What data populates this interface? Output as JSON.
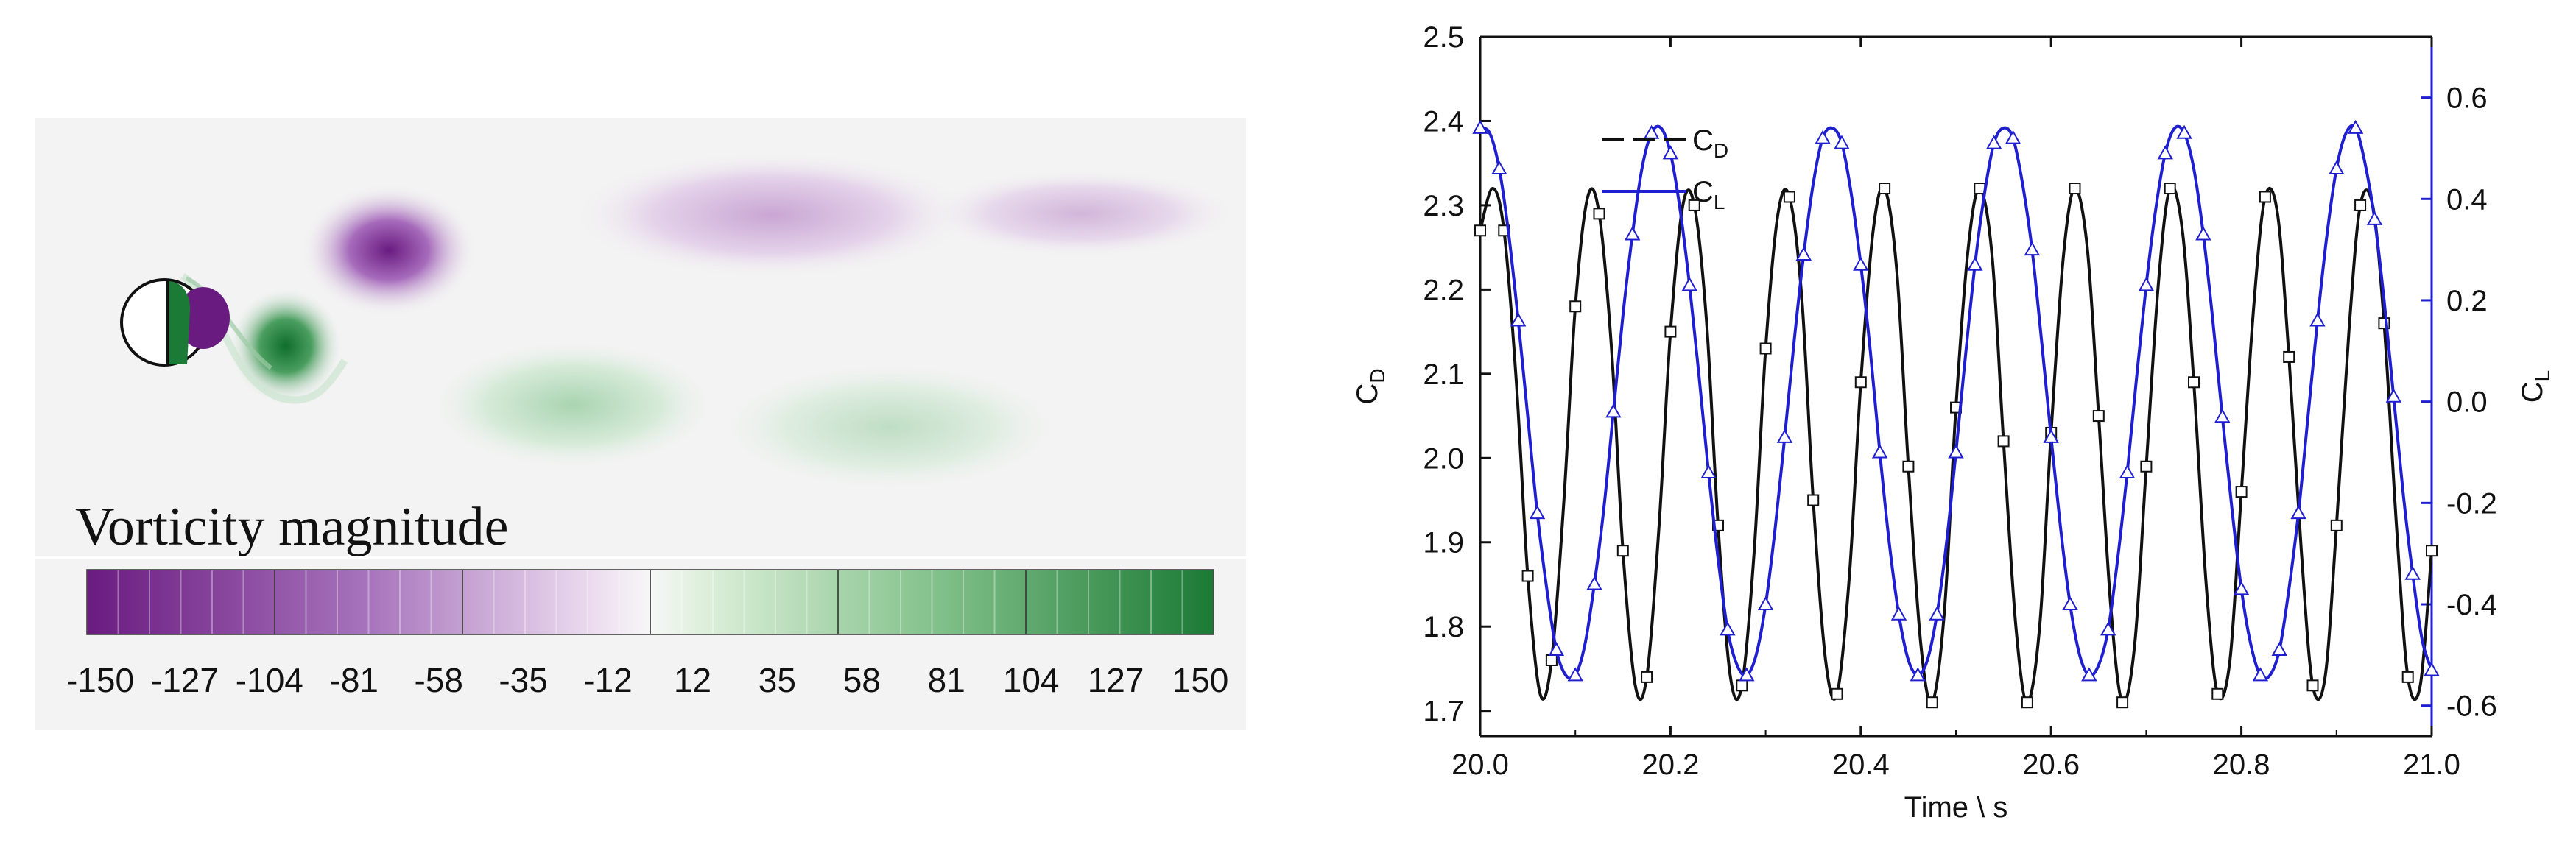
{
  "contour": {
    "title": "Vorticity magnitude",
    "colorbar_ticks": [
      "-150",
      "-127",
      "-104",
      "-81",
      "-58",
      "-35",
      "-12",
      "12",
      "35",
      "58",
      "81",
      "104",
      "127",
      "150"
    ],
    "colors": {
      "negative": "#6a1b80",
      "positive": "#1b7a35",
      "neutral": "#f7f7f7",
      "background": "#f3f3f3"
    }
  },
  "chart_data": {
    "type": "line",
    "xlabel": "Time \\ s",
    "xlim": [
      20.0,
      21.0
    ],
    "x_ticks": [
      "20.0",
      "20.2",
      "20.4",
      "20.6",
      "20.8",
      "21.0"
    ],
    "y_left": {
      "label": "C_D",
      "ylim": [
        1.67,
        2.5
      ],
      "ticks": [
        "1.7",
        "1.8",
        "1.9",
        "2.0",
        "2.1",
        "2.2",
        "2.3",
        "2.4",
        "2.5"
      ]
    },
    "y_right": {
      "label": "C_L",
      "ylim": [
        -0.66,
        0.72
      ],
      "ticks": [
        "-0.6",
        "-0.4",
        "-0.2",
        "0.0",
        "0.2",
        "0.4",
        "0.6"
      ],
      "color": "#1f1fd1"
    },
    "legend": {
      "placement": "top-left",
      "entries": [
        "C_D",
        "C_L"
      ]
    },
    "series": [
      {
        "name": "C_D",
        "axis": "left",
        "color": "#111111",
        "marker": "square",
        "x": [
          20.0,
          20.013,
          20.025,
          20.038,
          20.05,
          20.063,
          20.075,
          20.088,
          20.1,
          20.113,
          20.125,
          20.138,
          20.15,
          20.163,
          20.175,
          20.188,
          20.2,
          20.213,
          20.225,
          20.238,
          20.25,
          20.263,
          20.275,
          20.288,
          20.3,
          20.313,
          20.325,
          20.338,
          20.35,
          20.363,
          20.375,
          20.388,
          20.4,
          20.413,
          20.425,
          20.438,
          20.45,
          20.463,
          20.475,
          20.488,
          20.5,
          20.513,
          20.525,
          20.538,
          20.55,
          20.563,
          20.575,
          20.588,
          20.6,
          20.613,
          20.625,
          20.638,
          20.65,
          20.663,
          20.675,
          20.688,
          20.7,
          20.713,
          20.725,
          20.738,
          20.75,
          20.763,
          20.775,
          20.788,
          20.8,
          20.813,
          20.825,
          20.838,
          20.85,
          20.863,
          20.875,
          20.888,
          20.9,
          20.913,
          20.925,
          20.938,
          20.95,
          20.963,
          20.975,
          20.988,
          21.0
        ],
        "y": [
          2.27,
          2.32,
          2.27,
          2.09,
          1.86,
          1.72,
          1.76,
          1.95,
          2.18,
          2.31,
          2.29,
          2.13,
          1.89,
          1.73,
          1.74,
          1.92,
          2.15,
          2.3,
          2.3,
          2.16,
          1.92,
          1.74,
          1.73,
          1.89,
          2.13,
          2.29,
          2.31,
          2.19,
          1.95,
          1.76,
          1.72,
          1.86,
          2.09,
          2.27,
          2.32,
          2.22,
          1.99,
          1.78,
          1.71,
          1.82,
          2.06,
          2.25,
          2.32,
          2.24,
          2.02,
          1.8,
          1.71,
          1.8,
          2.03,
          2.24,
          2.32,
          2.25,
          2.05,
          1.82,
          1.71,
          1.78,
          1.99,
          2.21,
          2.32,
          2.27,
          2.09,
          1.85,
          1.72,
          1.76,
          1.96,
          2.18,
          2.31,
          2.29,
          2.12,
          1.89,
          1.73,
          1.74,
          1.92,
          2.15,
          2.3,
          2.3,
          2.16,
          1.92,
          1.74,
          1.73,
          1.89
        ]
      },
      {
        "name": "C_L",
        "axis": "right",
        "color": "#1f1fd1",
        "marker": "triangle",
        "x": [
          20.0,
          20.01,
          20.02,
          20.03,
          20.04,
          20.05,
          20.06,
          20.07,
          20.08,
          20.09,
          20.1,
          20.11,
          20.12,
          20.13,
          20.14,
          20.15,
          20.16,
          20.17,
          20.18,
          20.19,
          20.2,
          20.21,
          20.22,
          20.23,
          20.24,
          20.25,
          20.26,
          20.27,
          20.28,
          20.29,
          20.3,
          20.31,
          20.32,
          20.33,
          20.34,
          20.35,
          20.36,
          20.37,
          20.38,
          20.39,
          20.4,
          20.41,
          20.42,
          20.43,
          20.44,
          20.45,
          20.46,
          20.47,
          20.48,
          20.49,
          20.5,
          20.51,
          20.52,
          20.53,
          20.54,
          20.55,
          20.56,
          20.57,
          20.58,
          20.59,
          20.6,
          20.61,
          20.62,
          20.63,
          20.64,
          20.65,
          20.66,
          20.67,
          20.68,
          20.69,
          20.7,
          20.71,
          20.72,
          20.73,
          20.74,
          20.75,
          20.76,
          20.77,
          20.78,
          20.79,
          20.8,
          20.81,
          20.82,
          20.83,
          20.84,
          20.85,
          20.86,
          20.87,
          20.88,
          20.89,
          20.9,
          20.91,
          20.92,
          20.93,
          20.94,
          20.95,
          20.96,
          20.97,
          20.98,
          20.99,
          21.0
        ],
        "y": [
          0.54,
          0.53,
          0.46,
          0.33,
          0.16,
          -0.03,
          -0.22,
          -0.37,
          -0.49,
          -0.54,
          -0.54,
          -0.48,
          -0.36,
          -0.21,
          -0.02,
          0.17,
          0.33,
          0.46,
          0.53,
          0.54,
          0.49,
          0.38,
          0.23,
          0.05,
          -0.14,
          -0.31,
          -0.45,
          -0.52,
          -0.54,
          -0.5,
          -0.4,
          -0.25,
          -0.07,
          0.12,
          0.29,
          0.43,
          0.52,
          0.54,
          0.51,
          0.41,
          0.27,
          0.1,
          -0.1,
          -0.28,
          -0.42,
          -0.51,
          -0.54,
          -0.51,
          -0.42,
          -0.28,
          -0.1,
          0.09,
          0.27,
          0.41,
          0.51,
          0.54,
          0.52,
          0.43,
          0.3,
          0.12,
          -0.07,
          -0.25,
          -0.4,
          -0.5,
          -0.54,
          -0.52,
          -0.45,
          -0.31,
          -0.14,
          0.05,
          0.23,
          0.38,
          0.49,
          0.54,
          0.53,
          0.46,
          0.33,
          0.16,
          -0.03,
          -0.21,
          -0.37,
          -0.48,
          -0.54,
          -0.54,
          -0.49,
          -0.37,
          -0.22,
          -0.03,
          0.16,
          0.33,
          0.46,
          0.53,
          0.54,
          0.47,
          0.36,
          0.2,
          0.01,
          -0.18,
          -0.34,
          -0.47,
          -0.53
        ]
      }
    ]
  }
}
